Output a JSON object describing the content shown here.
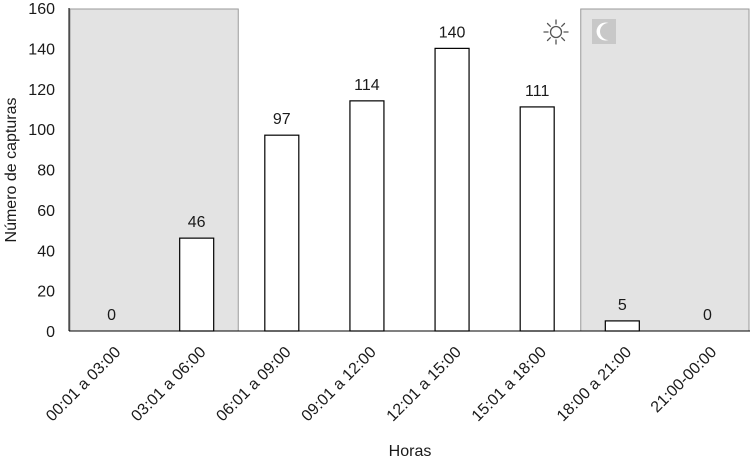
{
  "chart_data": {
    "type": "bar",
    "categories": [
      "00:01 a 03:00",
      "03:01 a 06:00",
      "06:01 a 09:00",
      "09:01 a 12:00",
      "12:01 a 15:00",
      "15:01 a 18:00",
      "18:00 a 21:00",
      "21:00-00:00"
    ],
    "values": [
      0,
      46,
      97,
      114,
      140,
      111,
      5,
      0
    ],
    "data_labels": [
      "0",
      "46",
      "97",
      "114",
      "140",
      "111",
      "5",
      "0"
    ],
    "xlabel": "Horas",
    "ylabel": "Número de capturas",
    "ylim": [
      0,
      160
    ],
    "yticks": [
      0,
      20,
      40,
      60,
      80,
      100,
      120,
      140,
      160
    ],
    "grid": false,
    "night_shading_categories": [
      [
        "00:01 a 03:00",
        "03:01 a 06:00"
      ],
      [
        "18:00 a 21:00",
        "21:00-00:00"
      ]
    ],
    "shading_color": "#e3e3e3",
    "bar_fill": "#ffffff",
    "bar_stroke": "#000000",
    "icons": [
      "sun-icon",
      "moon-icon"
    ]
  }
}
